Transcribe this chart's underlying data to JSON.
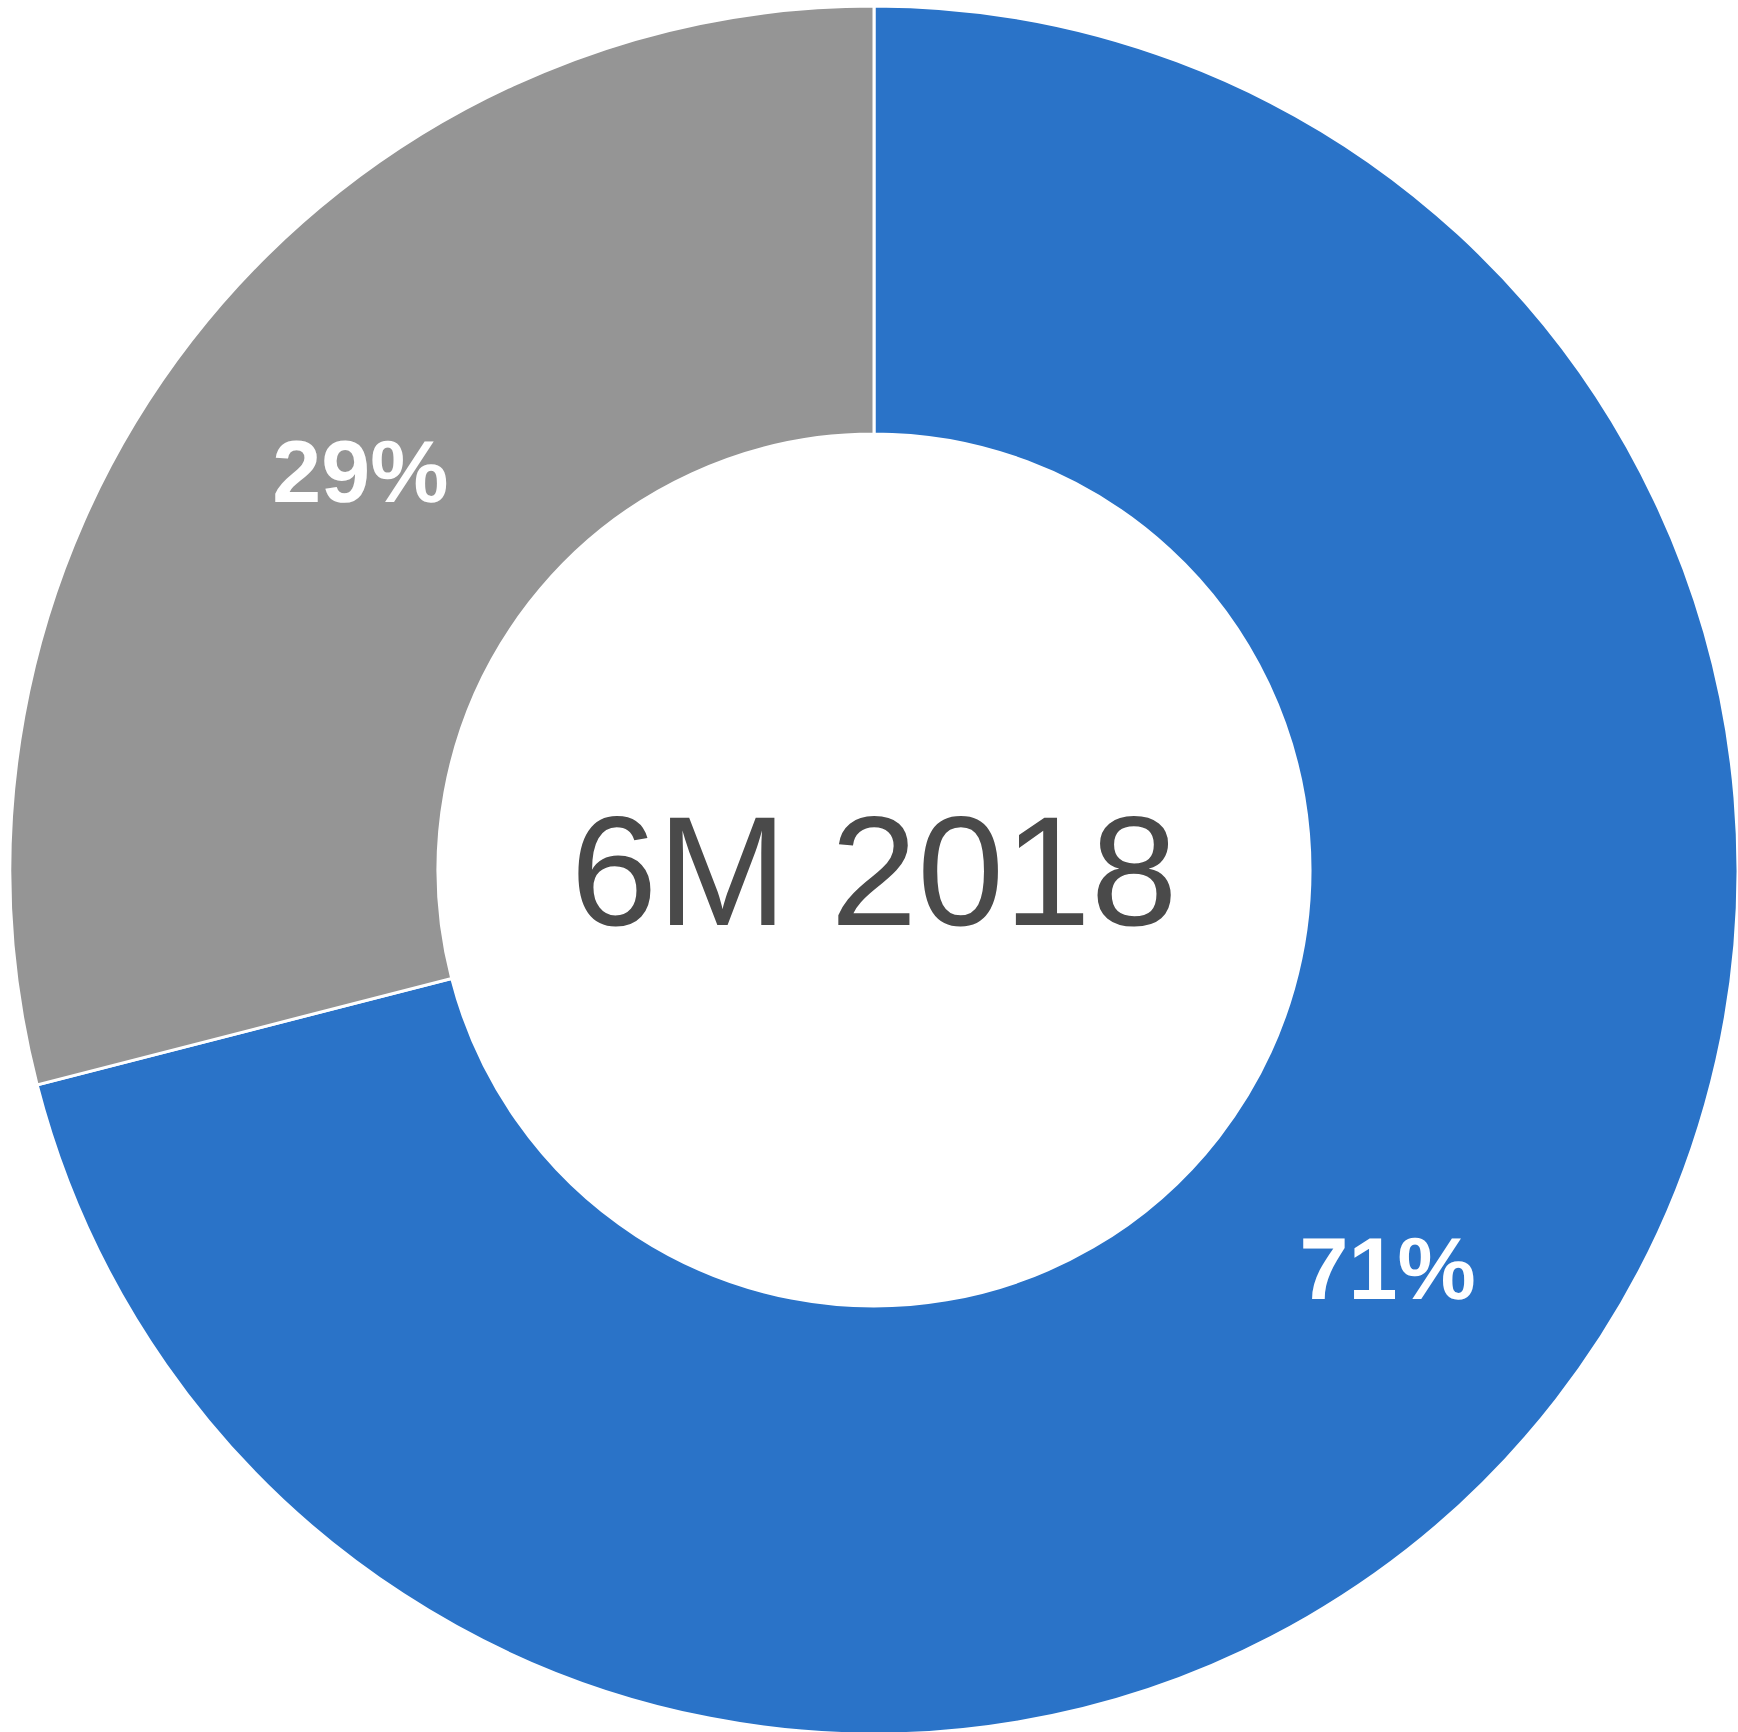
{
  "chart_data": {
    "type": "donut",
    "title": "6M 2018",
    "categories": [
      null,
      null
    ],
    "values": [
      71,
      29
    ],
    "colors": [
      "#2a73c8",
      "#959595"
    ],
    "value_labels": [
      "71%",
      "29%"
    ]
  }
}
